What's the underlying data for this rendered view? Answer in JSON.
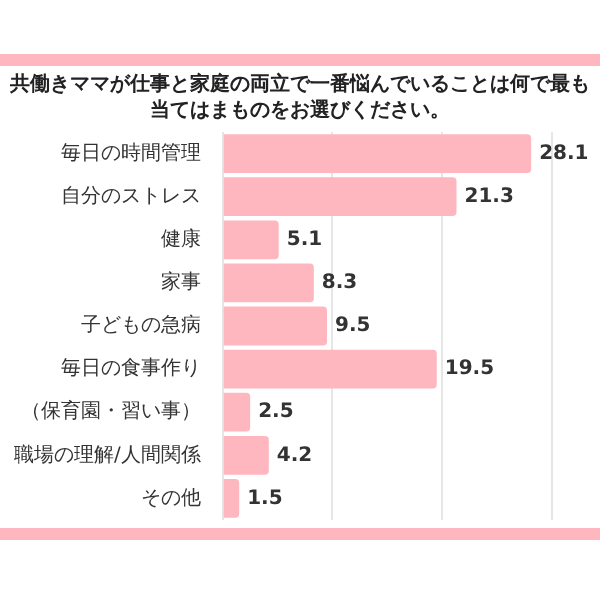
{
  "chart_data": {
    "type": "bar",
    "orientation": "horizontal",
    "title": "共働きママが仕事と家庭の両立で一番悩んでいることは何で最も当てはまものをお選びください。",
    "categories": [
      "毎日の時間管理",
      "自分のストレス",
      "健康",
      "家事",
      "子どもの急病",
      "毎日の食事作り",
      "（保育園・習い事）",
      "職場の理解/人間関係",
      "その他"
    ],
    "values": [
      28.1,
      21.3,
      5.1,
      8.3,
      9.5,
      19.5,
      2.5,
      4.2,
      1.5
    ],
    "color": "#ffb7bf",
    "xlim": [
      0,
      30
    ],
    "xticks": [
      {
        "value": 0,
        "label": null
      },
      {
        "value": 10,
        "label": null
      },
      {
        "value": 20,
        "label": null
      },
      {
        "value": 30,
        "label": null
      }
    ],
    "tick_labels": "y",
    "grid": "x",
    "data_labels": true,
    "legend": false
  }
}
